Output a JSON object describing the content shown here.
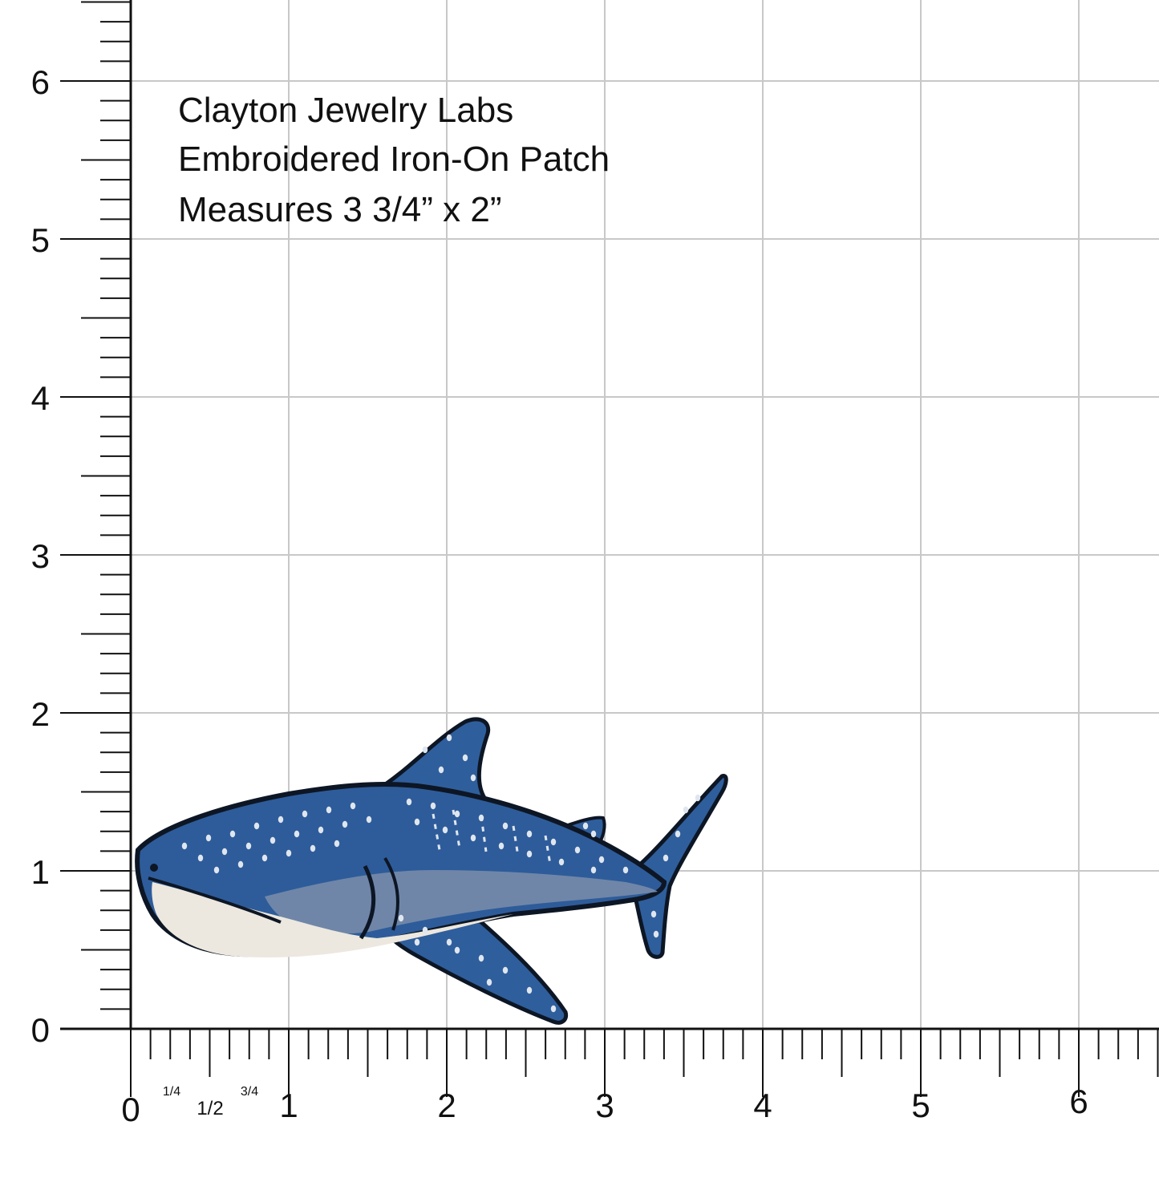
{
  "caption": {
    "line1": "Clayton Jewelry Labs",
    "line2": "Embroidered Iron-On Patch",
    "line3": "Measures 3 3/4” x 2”"
  },
  "ruler": {
    "x_labels": [
      "0",
      "1",
      "2",
      "3",
      "4",
      "5",
      "6"
    ],
    "y_labels": [
      "0",
      "1",
      "2",
      "3",
      "4",
      "5",
      "6"
    ],
    "fraction_labels": [
      "1/4",
      "1/2",
      "3/4"
    ]
  },
  "colors": {
    "grid": "#c8c8c8",
    "axis": "#111111",
    "shark_body": "#2e5c9a",
    "shark_belly": "#ece8df",
    "shark_mid": "#6f86a8",
    "outline": "#0d1624",
    "spots": "#dfe6ef"
  },
  "patch": {
    "name": "whale-shark-patch"
  }
}
